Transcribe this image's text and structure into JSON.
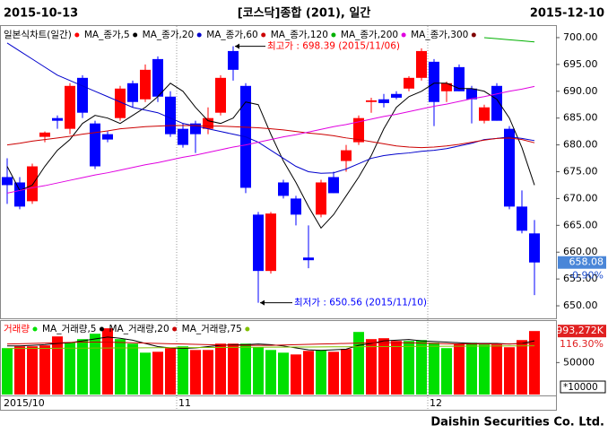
{
  "header": {
    "start_date": "2015-10-13",
    "title": "[코스닥]종합 (201), 일간",
    "end_date": "2015-12-10"
  },
  "footer": "Daishin Securities Co. Ltd.",
  "chart_data": [
    {
      "type": "candlestick",
      "legend_title": "일본식차트(일간)",
      "legend_color": "#ff0000",
      "up_color": "#ff0000",
      "down_color": "#0000ff",
      "categories": [
        "2015/10",
        null,
        null,
        null,
        null,
        null,
        null,
        null,
        null,
        null,
        null,
        null,
        null,
        null,
        "11",
        null,
        null,
        null,
        null,
        null,
        null,
        null,
        null,
        null,
        null,
        null,
        null,
        null,
        null,
        null,
        null,
        null,
        null,
        null,
        "12",
        null,
        null,
        null,
        null,
        null,
        null,
        null,
        null
      ],
      "candles": [
        {
          "open": 674,
          "high": 677.5,
          "low": 669,
          "close": 672.5
        },
        {
          "open": 673,
          "high": 674,
          "low": 668,
          "close": 668.5
        },
        {
          "open": 669.5,
          "high": 676.5,
          "low": 669,
          "close": 676
        },
        {
          "open": 681.5,
          "high": 682.5,
          "low": 680.5,
          "close": 682.3
        },
        {
          "open": 685,
          "high": 685.5,
          "low": 683,
          "close": 684.5
        },
        {
          "open": 683,
          "high": 691.5,
          "low": 682,
          "close": 691
        },
        {
          "open": 692.5,
          "high": 693,
          "low": 685,
          "close": 686
        },
        {
          "open": 684,
          "high": 684.5,
          "low": 675.5,
          "close": 676
        },
        {
          "open": 682,
          "high": 682.5,
          "low": 680.5,
          "close": 681
        },
        {
          "open": 685,
          "high": 691,
          "low": 684.5,
          "close": 690.5
        },
        {
          "open": 691.5,
          "high": 692,
          "low": 687,
          "close": 688
        },
        {
          "open": 688.5,
          "high": 695,
          "low": 688,
          "close": 694
        },
        {
          "open": 696,
          "high": 696.5,
          "low": 688,
          "close": 689
        },
        {
          "open": 689,
          "high": 690,
          "low": 681.5,
          "close": 682
        },
        {
          "open": 683,
          "high": 684,
          "low": 679.5,
          "close": 680
        },
        {
          "open": 684,
          "high": 684.5,
          "low": 678.5,
          "close": 682
        },
        {
          "open": 683,
          "high": 687,
          "low": 682,
          "close": 685
        },
        {
          "open": 686,
          "high": 693,
          "low": 685.5,
          "close": 692.5
        },
        {
          "open": 697.5,
          "high": 698.39,
          "low": 692,
          "close": 694
        },
        {
          "open": 691,
          "high": 691.5,
          "low": 671,
          "close": 672
        },
        {
          "open": 667,
          "high": 667.5,
          "low": 650.56,
          "close": 656.5
        },
        {
          "open": 656.5,
          "high": 667.5,
          "low": 656,
          "close": 667.2
        },
        {
          "open": 673,
          "high": 673.5,
          "low": 670,
          "close": 670.5
        },
        {
          "open": 670,
          "high": 670.5,
          "low": 665,
          "close": 667
        },
        {
          "open": 659,
          "high": 665,
          "low": 657,
          "close": 658.5
        },
        {
          "open": 667,
          "high": 673.5,
          "low": 666.5,
          "close": 673
        },
        {
          "open": 674,
          "high": 675,
          "low": 671,
          "close": 671
        },
        {
          "open": 677,
          "high": 680,
          "low": 675,
          "close": 679
        },
        {
          "open": 680.5,
          "high": 685.5,
          "low": 680,
          "close": 685
        },
        {
          "open": 688,
          "high": 688.8,
          "low": 686,
          "close": 688.3
        },
        {
          "open": 688.5,
          "high": 689.5,
          "low": 687,
          "close": 687.8
        },
        {
          "open": 689.5,
          "high": 690,
          "low": 688.5,
          "close": 688.8
        },
        {
          "open": 690.5,
          "high": 692.8,
          "low": 690,
          "close": 692.5
        },
        {
          "open": 692.5,
          "high": 698,
          "low": 692,
          "close": 697.5
        },
        {
          "open": 695.5,
          "high": 696,
          "low": 683.5,
          "close": 688
        },
        {
          "open": 690,
          "high": 691.8,
          "low": 688,
          "close": 691.5
        },
        {
          "open": 694.5,
          "high": 695,
          "low": 690,
          "close": 690
        },
        {
          "open": 690.5,
          "high": 691,
          "low": 684,
          "close": 688.5
        },
        {
          "open": 684.5,
          "high": 687.5,
          "low": 684,
          "close": 687
        },
        {
          "open": 691,
          "high": 691.5,
          "low": 684.5,
          "close": 684.5
        },
        {
          "open": 683,
          "high": 683.5,
          "low": 668,
          "close": 668.5
        },
        {
          "open": 668.5,
          "high": 671.5,
          "low": 663.5,
          "close": 664
        },
        {
          "open": 663.5,
          "high": 666,
          "low": 652,
          "close": 658.08
        }
      ],
      "series": [
        {
          "name": "MA_종가,5",
          "color": "#000000",
          "values": [
            676,
            671.5,
            672.5,
            676,
            679,
            681,
            684,
            685.5,
            685,
            684,
            685.5,
            687,
            689,
            691.5,
            690,
            687,
            684.5,
            684,
            685,
            688,
            687.5,
            682,
            677,
            673,
            668.5,
            664.5,
            667,
            670.5,
            674,
            678,
            683,
            687,
            689,
            690,
            691.5,
            691.5,
            690.5,
            690.5,
            690,
            688.5,
            685,
            679.5,
            672.5
          ]
        },
        {
          "name": "MA_종가,20",
          "color": "#0000cc",
          "values": [
            699,
            697.5,
            696,
            694.5,
            693,
            692,
            691,
            690,
            689,
            688,
            687,
            686.5,
            686,
            685,
            684,
            683.5,
            683,
            682.5,
            682,
            681.5,
            680.5,
            679,
            677.5,
            676,
            675,
            674.7,
            674.8,
            675.5,
            676.5,
            677.5,
            678,
            678.3,
            678.5,
            678.8,
            679,
            679.3,
            679.8,
            680.3,
            681,
            681.2,
            681.5,
            681.2,
            680.8
          ]
        },
        {
          "name": "MA_종가,60",
          "color": "#cc0000",
          "values": [
            680,
            680.3,
            680.7,
            681,
            681.3,
            681.6,
            682,
            682.3,
            682.6,
            683,
            683.2,
            683.4,
            683.5,
            683.6,
            683.6,
            683.6,
            683.5,
            683.5,
            683.4,
            683.3,
            683.2,
            683,
            682.8,
            682.5,
            682.2,
            682,
            681.7,
            681.3,
            681,
            680.6,
            680.2,
            679.8,
            679.6,
            679.5,
            679.6,
            679.8,
            680.1,
            680.5,
            680.9,
            681.2,
            681.3,
            681,
            680.4
          ]
        },
        {
          "name": "MA_종가,120",
          "color": "#00b000",
          "values": [
            null,
            null,
            null,
            null,
            null,
            null,
            null,
            null,
            null,
            null,
            null,
            null,
            null,
            null,
            null,
            null,
            null,
            null,
            null,
            null,
            null,
            null,
            null,
            null,
            null,
            null,
            null,
            null,
            null,
            null,
            null,
            null,
            null,
            null,
            null,
            null,
            null,
            null,
            700,
            699.8,
            699.6,
            699.4,
            699.2
          ]
        },
        {
          "name": "MA_종가,200",
          "color": "#e000e0",
          "values": [
            671,
            671.5,
            672,
            672.4,
            672.9,
            673.4,
            673.9,
            674.4,
            674.8,
            675.3,
            675.8,
            676.3,
            676.7,
            677.2,
            677.7,
            678.1,
            678.6,
            679.1,
            679.6,
            680,
            680.5,
            681,
            681.5,
            681.9,
            682.4,
            682.9,
            683.4,
            683.8,
            684.3,
            684.8,
            685.3,
            685.7,
            686.2,
            686.7,
            687.2,
            687.6,
            688.1,
            688.6,
            689,
            689.5,
            690,
            690.4,
            690.9
          ]
        },
        {
          "name": "MA_종가,300",
          "color": "#800000",
          "values": [
            null,
            null,
            null,
            null,
            null,
            null,
            null,
            null,
            null,
            null,
            null,
            null,
            null,
            null,
            null,
            null,
            null,
            null,
            null,
            null,
            null,
            null,
            null,
            null,
            null,
            null,
            null,
            null,
            null,
            null,
            null,
            null,
            null,
            null,
            null,
            null,
            null,
            null,
            null,
            null,
            null,
            null,
            null
          ]
        }
      ],
      "annotations": [
        {
          "text": "최고가 : 698.39 (2015/11/06)",
          "candle": 18,
          "color": "#ff0000"
        },
        {
          "text": "최저가 : 650.56 (2015/11/10)",
          "candle": 20,
          "color": "#0000ff"
        }
      ],
      "last_change": {
        "value": -0.9,
        "label": "-0.90%"
      },
      "ylim": [
        648,
        702
      ],
      "yticks": [
        {
          "value": 650,
          "label": "650.00"
        },
        {
          "value": 655,
          "label": "655.00"
        },
        {
          "value": 660,
          "label": "660.00"
        },
        {
          "value": 665,
          "label": "665.00"
        },
        {
          "value": 670,
          "label": "670.00"
        },
        {
          "value": 675,
          "label": "675.00"
        },
        {
          "value": 680,
          "label": "680.00"
        },
        {
          "value": 685,
          "label": "685.00"
        },
        {
          "value": 690,
          "label": "690.00"
        },
        {
          "value": 695,
          "label": "695.00"
        },
        {
          "value": 700,
          "label": "700.00"
        }
      ]
    },
    {
      "type": "bar",
      "title": "거래량",
      "title_color": "#ff0000",
      "values": [
        72600,
        75400,
        75400,
        76800,
        90900,
        81000,
        86700,
        95100,
        103600,
        86700,
        79600,
        65500,
        66900,
        72600,
        75400,
        69700,
        69700,
        79600,
        79600,
        79600,
        74000,
        69700,
        65500,
        62700,
        68300,
        69700,
        66900,
        71200,
        97900,
        86700,
        88100,
        83800,
        83800,
        85200,
        81000,
        72600,
        79600,
        81000,
        78200,
        78200,
        74000,
        85200,
        99327.2
      ],
      "colors": [
        "#00e000",
        "#ff0000",
        "#ff0000",
        "#ff0000",
        "#ff0000",
        "#00e000",
        "#00e000",
        "#00e000",
        "#ff0000",
        "#00e000",
        "#00e000",
        "#00e000",
        "#ff0000",
        "#ff0000",
        "#00e000",
        "#ff0000",
        "#ff0000",
        "#ff0000",
        "#ff0000",
        "#00e000",
        "#00e000",
        "#00e000",
        "#00e000",
        "#ff0000",
        "#ff0000",
        "#00e000",
        "#ff0000",
        "#ff0000",
        "#00e000",
        "#ff0000",
        "#ff0000",
        "#ff0000",
        "#00e000",
        "#00e000",
        "#00e000",
        "#00e000",
        "#ff0000",
        "#00e000",
        "#00e000",
        "#ff0000",
        "#ff0000",
        "#ff0000",
        "#ff0000"
      ],
      "series": [
        {
          "name": "MA_거래량,5",
          "color": "#000000",
          "values": [
            76000,
            76000,
            77000,
            78000,
            80000,
            81000,
            84000,
            87000,
            90000,
            88000,
            85000,
            80000,
            75000,
            73000,
            72000,
            73000,
            75000,
            77000,
            78000,
            78000,
            79000,
            78000,
            76000,
            73000,
            70000,
            69000,
            70000,
            71000,
            77000,
            80000,
            84000,
            85000,
            86000,
            84000,
            83000,
            82000,
            81000,
            80000,
            80000,
            80000,
            79000,
            80000,
            84000
          ]
        },
        {
          "name": "MA_거래량,20",
          "color": "#cc0000",
          "values": [
            79000,
            79500,
            80000,
            80500,
            81000,
            81500,
            82000,
            82000,
            82000,
            81500,
            81000,
            80500,
            80000,
            79500,
            79000,
            78500,
            78000,
            77500,
            77000,
            77000,
            77000,
            77000,
            77500,
            78000,
            78500,
            79000,
            79500,
            80000,
            80500,
            81000,
            81000,
            81000,
            81000,
            80500,
            80000,
            79500,
            79000,
            79000,
            79000,
            79000,
            79000,
            79500,
            80000
          ]
        },
        {
          "name": "MA_거래량,75",
          "color": "#80c000",
          "values": [
            72000,
            72100,
            72200,
            72300,
            72400,
            72500,
            72600,
            72700,
            72800,
            72900,
            73000,
            73100,
            73200,
            73300,
            73400,
            73500,
            73600,
            73700,
            73800,
            73900,
            74000,
            74100,
            74200,
            74300,
            74400,
            74500,
            74600,
            74700,
            74800,
            74900,
            75000,
            75100,
            75200,
            75300,
            75400,
            75500,
            75600,
            75700,
            75800,
            75900,
            76000,
            76100,
            76200
          ]
        }
      ],
      "last_label": "993,272K",
      "last_change": {
        "value": 116.3,
        "label": "116.30%"
      },
      "unit": "*10000",
      "ylim": [
        0,
        115000
      ],
      "yticks": [
        50000
      ]
    }
  ]
}
